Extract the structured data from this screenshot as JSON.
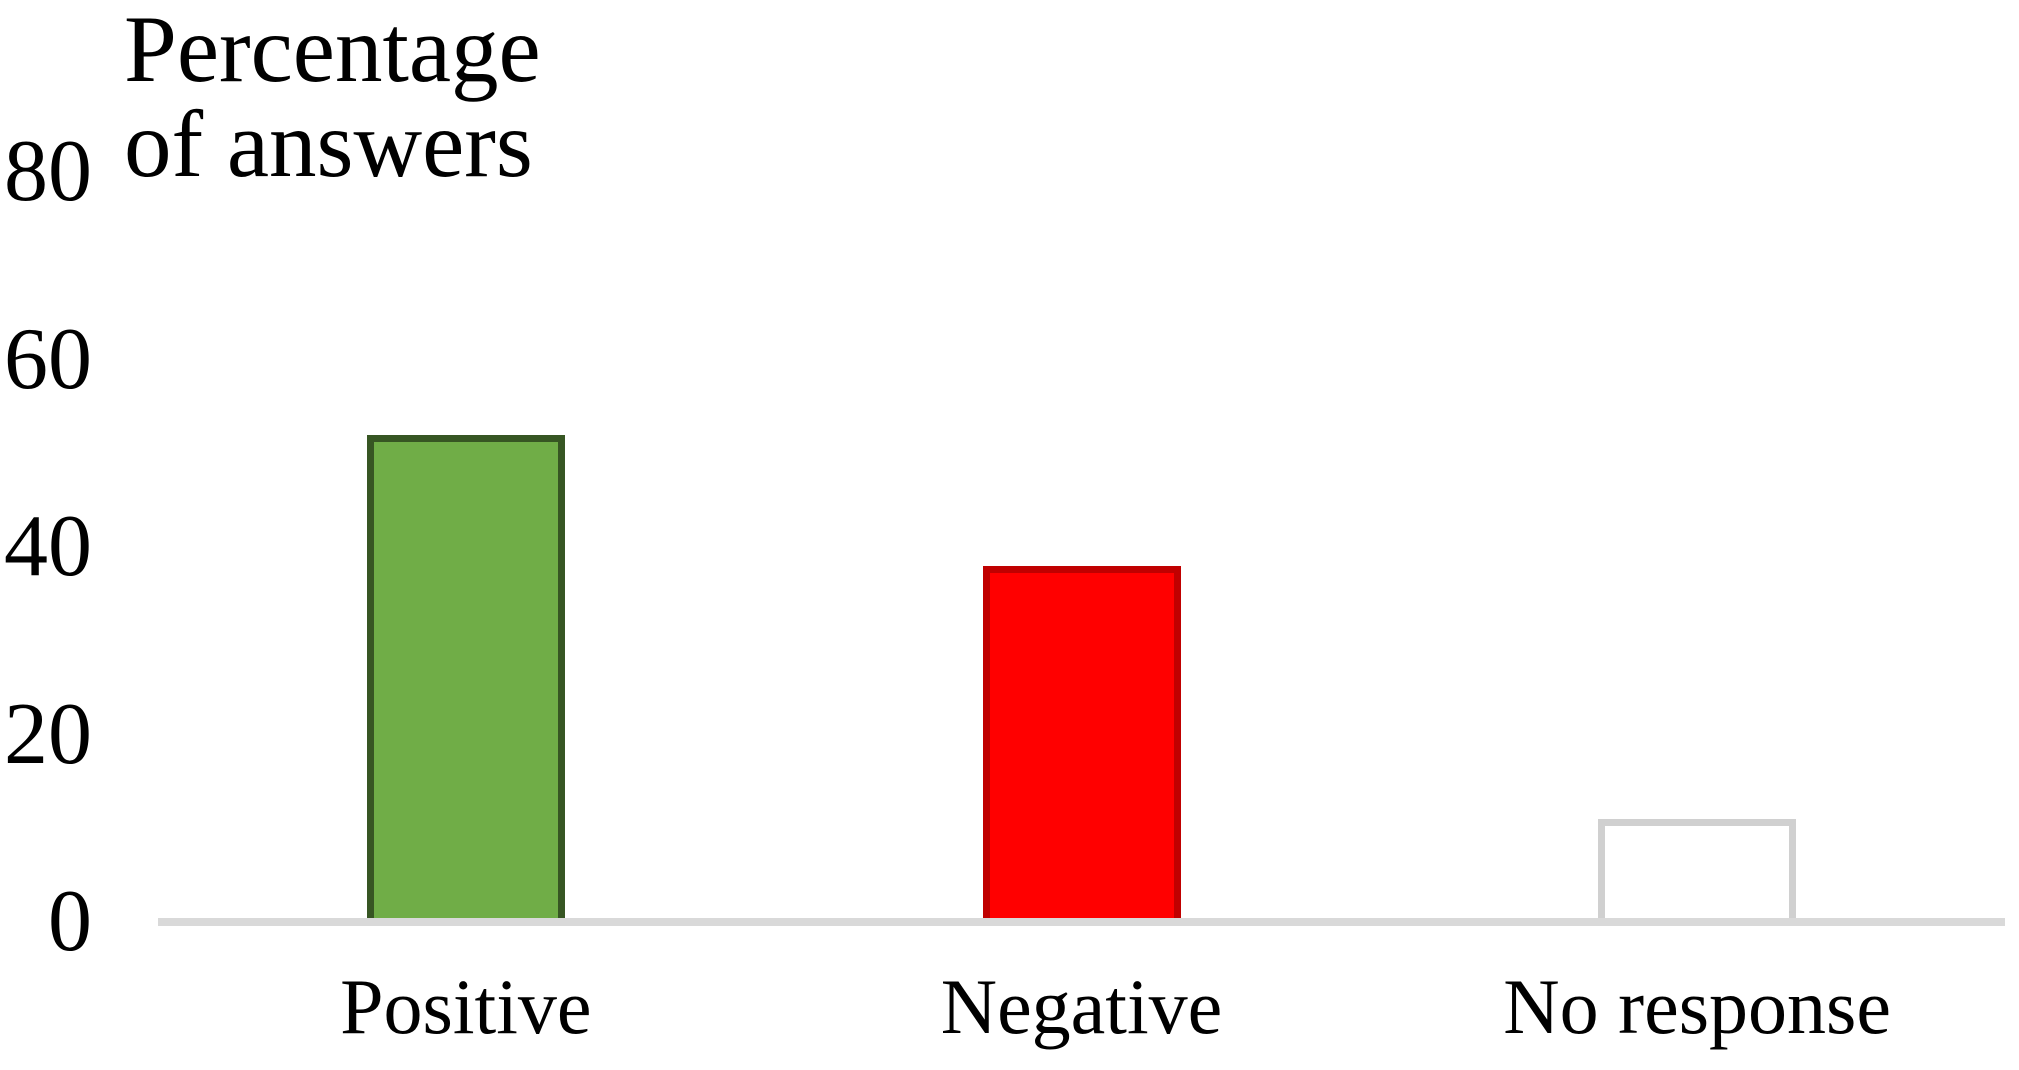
{
  "chart_data": {
    "type": "bar",
    "title": "Percentage of answers",
    "title_lines": [
      "Percentage",
      "of answers"
    ],
    "ylabel": "Percentage of answers",
    "xlabel": "",
    "categories": [
      "Positive",
      "Negative",
      "No response"
    ],
    "values": [
      52,
      38,
      11
    ],
    "series": [
      {
        "name": "Percentage of answers",
        "values": [
          52,
          38,
          11
        ]
      }
    ],
    "bar_styles": [
      {
        "category": "Positive",
        "fill": "#70AD47",
        "border": "#375623"
      },
      {
        "category": "Negative",
        "fill": "#FF0000",
        "border": "#C00000"
      },
      {
        "category": "No response",
        "fill": "#FFFFFF",
        "border": "#D0D0D0"
      }
    ],
    "yticks": [
      0,
      20,
      40,
      60,
      80
    ],
    "ylim": [
      0,
      80
    ],
    "grid": false,
    "legend": false,
    "axis_line_color": "#D9D9D9",
    "text_color": "#000000",
    "background_color": "#FFFFFF"
  }
}
